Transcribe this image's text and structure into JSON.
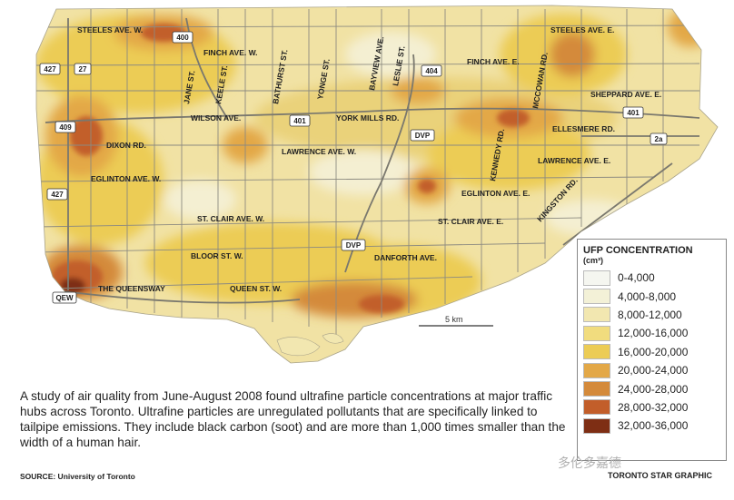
{
  "roads": {
    "steeles_w": "STEELES AVE. W.",
    "hwy_400": "400",
    "finch_w": "FINCH AVE. W.",
    "jane": "JANE ST.",
    "keele": "KEELE ST.",
    "bathurst": "BATHURST ST.",
    "yonge": "YONGE ST.",
    "bayview": "BAYVIEW AVE.",
    "leslie": "LESLIE ST.",
    "hwy_404": "404",
    "steeles_e": "STEELES AVE. E.",
    "finch_e": "FINCH AVE. E.",
    "mccowan": "MCCOWAN RD.",
    "sheppard_e": "SHEPPARD AVE. E.",
    "hwy_427_top": "427",
    "hwy_27": "27",
    "hwy_409": "409",
    "wilson": "WILSON AVE.",
    "hwy_401_mid": "401",
    "york_mills": "YORK MILLS RD.",
    "hwy_401_east": "401",
    "ellesmere": "ELLESMERE RD.",
    "dixon": "DIXON RD.",
    "dvp_north": "DVP",
    "kennedy": "KENNEDY RD.",
    "hwy_2a": "2a",
    "lawrence_w": "LAWRENCE AVE. W.",
    "lawrence_e": "LAWRENCE AVE. E.",
    "eglinton_w": "EGLINTON AVE. W.",
    "hwy_427_low": "427",
    "eglinton_e": "EGLINTON AVE. E.",
    "kingston": "KINGSTON RD.",
    "st_clair_w": "ST. CLAIR AVE. W.",
    "st_clair_e": "ST. CLAIR AVE. E.",
    "bloor_w": "BLOOR ST. W.",
    "dvp_south": "DVP",
    "danforth": "DANFORTH AVE.",
    "queensway": "THE QUEENSWAY",
    "queen_w": "QUEEN ST. W.",
    "qew": "QEW"
  },
  "scale": {
    "label": "5 km"
  },
  "legend": {
    "title": "UFP CONCENTRATION",
    "unit": "(cm³)",
    "items": [
      {
        "label": "0-4,000",
        "color": "#f5f6f0"
      },
      {
        "label": "4,000-8,000",
        "color": "#f3f1d7"
      },
      {
        "label": "8,000-12,000",
        "color": "#f2e7b0"
      },
      {
        "label": "12,000-16,000",
        "color": "#f1dc7e"
      },
      {
        "label": "16,000-20,000",
        "color": "#eccc55"
      },
      {
        "label": "20,000-24,000",
        "color": "#e3a847"
      },
      {
        "label": "24,000-28,000",
        "color": "#d48a3b"
      },
      {
        "label": "28,000-32,000",
        "color": "#c25e2a"
      },
      {
        "label": "32,000-36,000",
        "color": "#7e2e14"
      }
    ]
  },
  "caption": "A study of air quality from June-August 2008 found ultrafine particle concentrations at major traffic hubs across Toronto. Ultrafine particles are unregulated pollutants that are specifically linked to tailpipe emissions. They include black carbon (soot) and are more than 1,000 times smaller than the width of a human hair.",
  "source": "SOURCE: University of Toronto",
  "credit": "TORONTO STAR GRAPHIC",
  "watermark": "多伦多嘉德"
}
